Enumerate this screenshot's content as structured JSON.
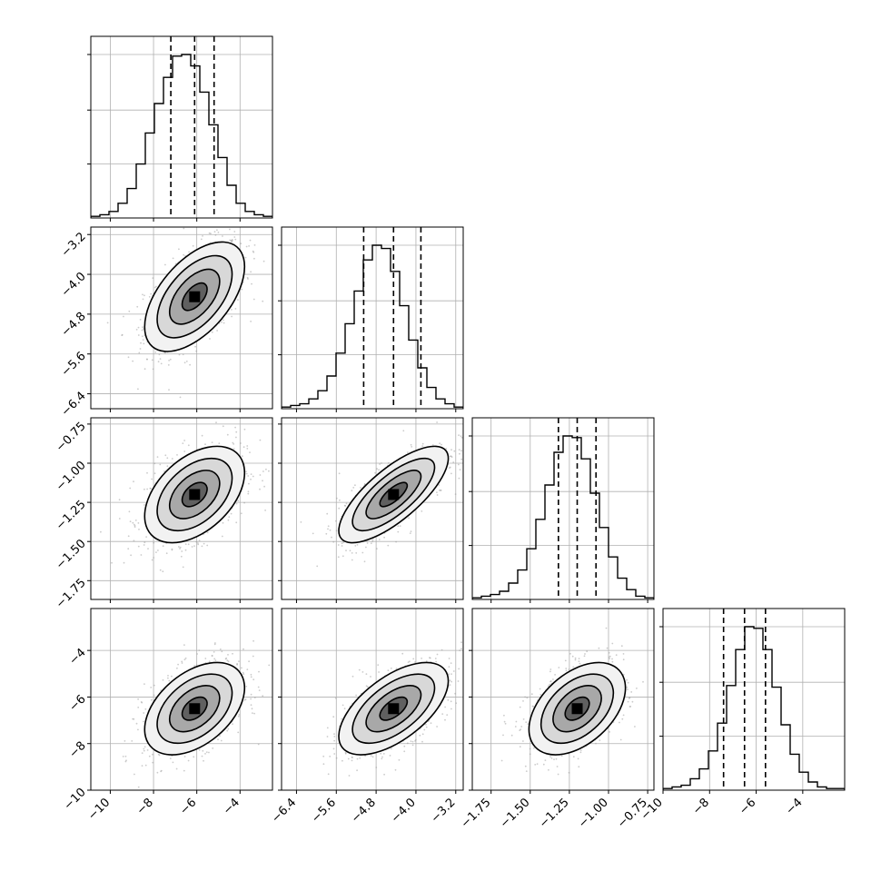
{
  "chart_data": {
    "type": "corner",
    "title": "",
    "grid": true,
    "n_params": 4,
    "params": [
      {
        "ticks": [
          -10,
          -8,
          -6,
          -4
        ],
        "tick_labels": [
          "−10",
          "−8",
          "−6",
          "−4"
        ],
        "range": [
          -10.9,
          -2.5
        ],
        "quantiles": [
          -7.2,
          -6.1,
          -5.2
        ]
      },
      {
        "ticks": [
          -6.4,
          -5.6,
          -4.8,
          -4.0,
          -3.2
        ],
        "tick_labels": [
          "−6.4",
          "−5.6",
          "−4.8",
          "−4.0",
          "−3.2"
        ],
        "range": [
          -6.7,
          -3.05
        ],
        "quantiles": [
          -5.05,
          -4.45,
          -3.9
        ]
      },
      {
        "ticks": [
          -1.75,
          -1.5,
          -1.25,
          -1.0,
          -0.75
        ],
        "tick_labels": [
          "−1.75",
          "−1.50",
          "−1.25",
          "−1.00",
          "−0.75"
        ],
        "range": [
          -1.87,
          -0.71
        ],
        "quantiles": [
          -1.32,
          -1.2,
          -1.08
        ]
      },
      {
        "ticks": [
          -10,
          -8,
          -6,
          -4
        ],
        "tick_labels": [
          "−10",
          "−8",
          "−6",
          "−4"
        ],
        "range": [
          -10.0,
          -2.2
        ],
        "quantiles": [
          -7.4,
          -6.5,
          -5.6
        ]
      }
    ],
    "histograms": [
      {
        "bins": 20,
        "counts": [
          1,
          2,
          4,
          9,
          18,
          33,
          52,
          70,
          86,
          99,
          100,
          93,
          77,
          57,
          37,
          20,
          9,
          4,
          2,
          1
        ]
      },
      {
        "bins": 20,
        "counts": [
          1,
          2,
          3,
          6,
          11,
          20,
          34,
          52,
          72,
          91,
          100,
          98,
          84,
          63,
          42,
          25,
          13,
          6,
          3,
          1
        ]
      },
      {
        "bins": 20,
        "counts": [
          1,
          2,
          3,
          5,
          10,
          18,
          31,
          49,
          70,
          90,
          100,
          99,
          86,
          65,
          44,
          26,
          13,
          6,
          2,
          1
        ]
      },
      {
        "bins": 20,
        "counts": [
          1,
          2,
          3,
          7,
          13,
          24,
          41,
          64,
          86,
          100,
          99,
          86,
          63,
          40,
          22,
          11,
          5,
          2,
          1,
          1
        ]
      }
    ],
    "pairs": [
      {
        "row": 1,
        "col": 0,
        "mean": [
          -6.1,
          -4.45
        ],
        "sd": [
          1.05,
          0.5
        ],
        "rho": 0.55
      },
      {
        "row": 2,
        "col": 0,
        "mean": [
          -6.1,
          -1.2
        ],
        "sd": [
          1.05,
          0.14
        ],
        "rho": 0.45
      },
      {
        "row": 2,
        "col": 1,
        "mean": [
          -4.45,
          -1.2
        ],
        "sd": [
          0.5,
          0.14
        ],
        "rho": 0.75
      },
      {
        "row": 3,
        "col": 0,
        "mean": [
          -6.1,
          -6.5
        ],
        "sd": [
          1.05,
          0.9
        ],
        "rho": 0.45
      },
      {
        "row": 3,
        "col": 1,
        "mean": [
          -4.45,
          -6.5
        ],
        "sd": [
          0.5,
          0.9
        ],
        "rho": 0.6
      },
      {
        "row": 3,
        "col": 2,
        "mean": [
          -1.2,
          -6.5
        ],
        "sd": [
          0.14,
          0.9
        ],
        "rho": 0.45
      }
    ],
    "contour_sigmas": [
      0.5,
      1.0,
      1.5,
      2.0
    ],
    "colors": {
      "line": "#000000",
      "grid": "#b0b0b0",
      "points": "#a0a0a0",
      "fill_dark": "#000000",
      "fill_light": "#ffffff"
    }
  }
}
